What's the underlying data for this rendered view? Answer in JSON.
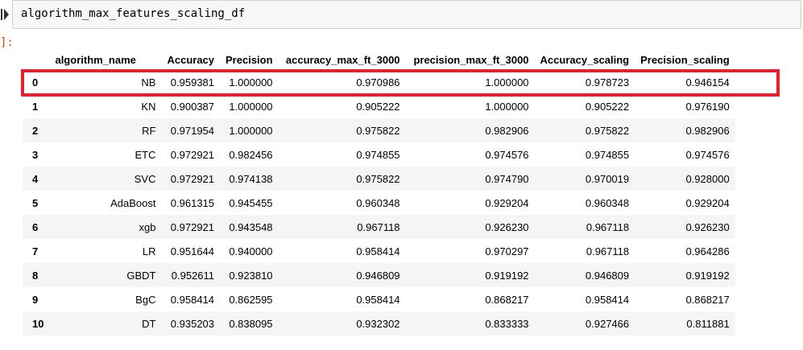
{
  "cell": {
    "code": "algorithm_max_features_scaling_df",
    "output_prompt": "]:"
  },
  "table": {
    "columns": [
      "",
      "algorithm_name",
      "Accuracy",
      "Precision",
      "accuracy_max_ft_3000",
      "precision_max_ft_3000",
      "Accuracy_scaling",
      "Precision_scaling"
    ],
    "rows": [
      [
        "0",
        "NB",
        "0.959381",
        "1.000000",
        "0.970986",
        "1.000000",
        "0.978723",
        "0.946154"
      ],
      [
        "1",
        "KN",
        "0.900387",
        "1.000000",
        "0.905222",
        "1.000000",
        "0.905222",
        "0.976190"
      ],
      [
        "2",
        "RF",
        "0.971954",
        "1.000000",
        "0.975822",
        "0.982906",
        "0.975822",
        "0.982906"
      ],
      [
        "3",
        "ETC",
        "0.972921",
        "0.982456",
        "0.974855",
        "0.974576",
        "0.974855",
        "0.974576"
      ],
      [
        "4",
        "SVC",
        "0.972921",
        "0.974138",
        "0.975822",
        "0.974790",
        "0.970019",
        "0.928000"
      ],
      [
        "5",
        "AdaBoost",
        "0.961315",
        "0.945455",
        "0.960348",
        "0.929204",
        "0.960348",
        "0.929204"
      ],
      [
        "6",
        "xgb",
        "0.972921",
        "0.943548",
        "0.967118",
        "0.926230",
        "0.967118",
        "0.926230"
      ],
      [
        "7",
        "LR",
        "0.951644",
        "0.940000",
        "0.958414",
        "0.970297",
        "0.967118",
        "0.964286"
      ],
      [
        "8",
        "GBDT",
        "0.952611",
        "0.923810",
        "0.946809",
        "0.919192",
        "0.946809",
        "0.919192"
      ],
      [
        "9",
        "BgC",
        "0.958414",
        "0.862595",
        "0.958414",
        "0.868217",
        "0.958414",
        "0.868217"
      ],
      [
        "10",
        "DT",
        "0.935203",
        "0.838095",
        "0.932302",
        "0.833333",
        "0.927466",
        "0.811881"
      ]
    ]
  },
  "colors": {
    "highlight": "#e3202b",
    "prompt": "#d84315"
  }
}
